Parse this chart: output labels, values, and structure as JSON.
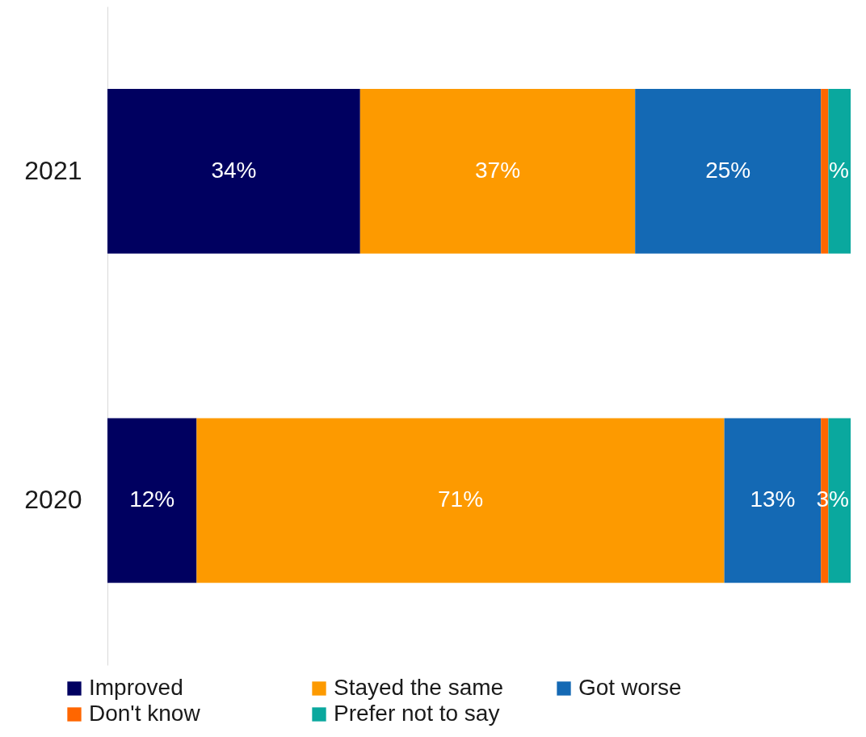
{
  "chart_data": {
    "type": "bar",
    "orientation": "horizontal",
    "stacked": true,
    "categories": [
      "2021",
      "2020"
    ],
    "xlim": [
      0,
      100
    ],
    "legend": "bottom",
    "series": [
      {
        "name": "Improved",
        "color": "#000060",
        "values": [
          34,
          12
        ],
        "value_labels": [
          "34%",
          "12%"
        ]
      },
      {
        "name": "Stayed the same",
        "color": "#fd9a00",
        "values": [
          37,
          71
        ],
        "value_labels": [
          "37%",
          "71%"
        ]
      },
      {
        "name": "Got worse",
        "color": "#1469b4",
        "values": [
          25,
          13
        ],
        "value_labels": [
          "25%",
          "13%"
        ]
      },
      {
        "name": "Don't know",
        "color": "#ff6600",
        "values": [
          1,
          1
        ],
        "value_labels": [
          null,
          null
        ]
      },
      {
        "name": "Prefer not to say",
        "color": "#0aa89e",
        "values": [
          3,
          3
        ],
        "value_labels": [
          "%",
          "3%"
        ]
      }
    ]
  }
}
